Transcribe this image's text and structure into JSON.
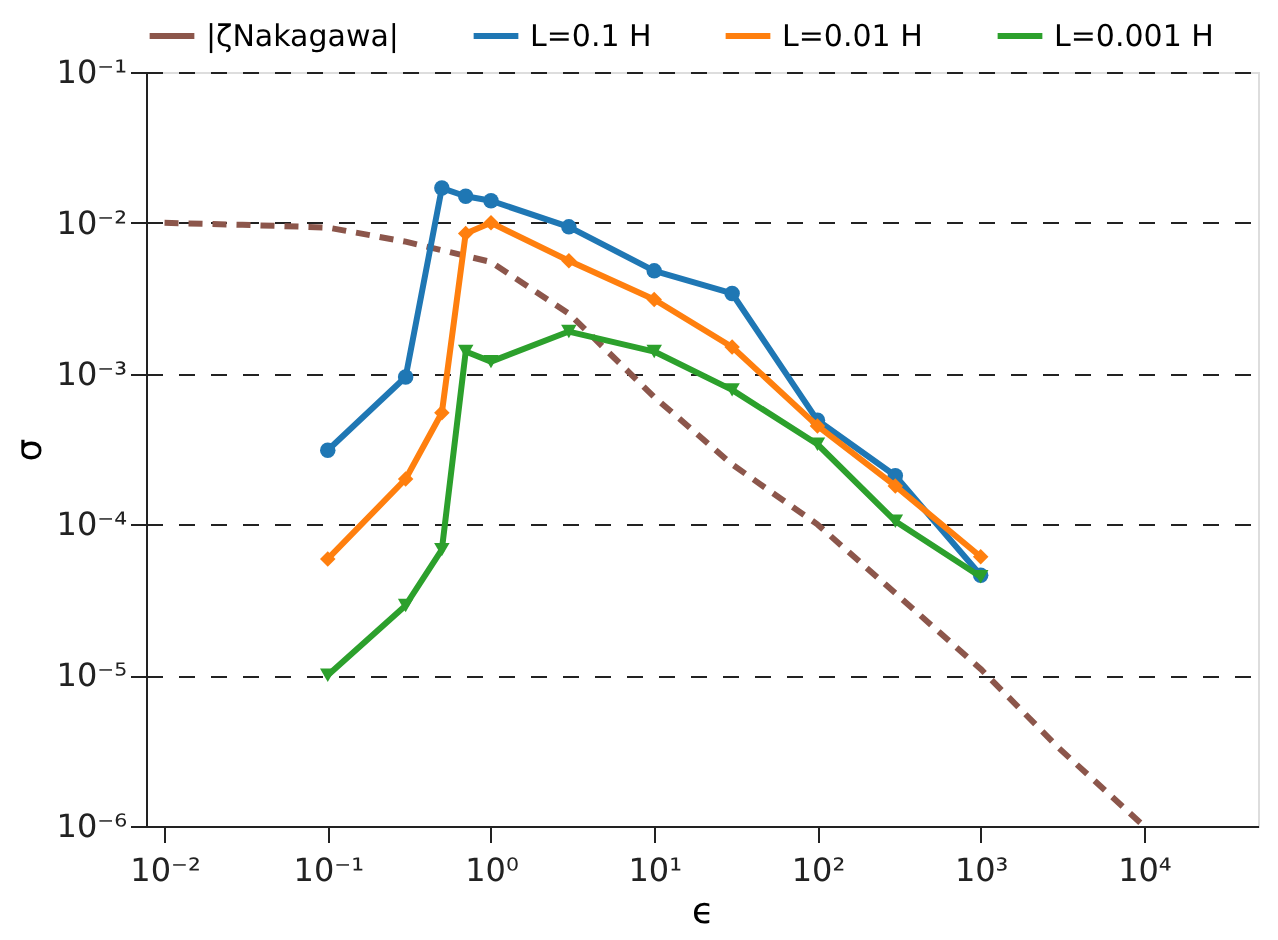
{
  "chart_data": {
    "type": "line",
    "xlabel": "ϵ",
    "ylabel": "σ",
    "log": "xy",
    "grid": "y",
    "legend": "top",
    "xlim": [
      0.0077,
      50000
    ],
    "ylim": [
      1e-06,
      0.1
    ],
    "xticks": [
      {
        "value": 0.01,
        "label": "10⁻²"
      },
      {
        "value": 0.1,
        "label": "10⁻¹"
      },
      {
        "value": 1,
        "label": "10⁰"
      },
      {
        "value": 10,
        "label": "10¹"
      },
      {
        "value": 100,
        "label": "10²"
      },
      {
        "value": 1000,
        "label": "10³"
      },
      {
        "value": 10000,
        "label": "10⁴"
      }
    ],
    "yticks": [
      {
        "value": 1e-06,
        "label": "10⁻⁶"
      },
      {
        "value": 1e-05,
        "label": "10⁻⁵"
      },
      {
        "value": 0.0001,
        "label": "10⁻⁴"
      },
      {
        "value": 0.001,
        "label": "10⁻³"
      },
      {
        "value": 0.01,
        "label": "10⁻²"
      },
      {
        "value": 0.1,
        "label": "10⁻¹"
      }
    ],
    "series": [
      {
        "name": "|ζNakagawa|",
        "color": "#8c564b",
        "marker": "none",
        "line_style": "dashed",
        "x": [
          0.01,
          0.03,
          0.1,
          0.3,
          1,
          3,
          10,
          30,
          100,
          300,
          1000,
          3000,
          10000
        ],
        "values": [
          0.01,
          0.0097,
          0.0093,
          0.0075,
          0.0055,
          0.0025,
          0.0007,
          0.00025,
          0.0001,
          3.5e-05,
          1.1e-05,
          3.3e-06,
          1e-06
        ]
      },
      {
        "name": "L=0.1 H",
        "color": "#1f77b4",
        "marker": "circle",
        "line_style": "solid",
        "x": [
          0.1,
          0.3,
          0.5,
          0.7,
          1,
          3,
          10,
          30,
          100,
          300,
          1000
        ],
        "values": [
          0.00031,
          0.00095,
          0.017,
          0.015,
          0.014,
          0.0094,
          0.0048,
          0.0034,
          0.00049,
          0.00021,
          4.6e-05
        ]
      },
      {
        "name": "L=0.01 H",
        "color": "#ff7f0e",
        "marker": "diamond",
        "line_style": "solid",
        "x": [
          0.1,
          0.3,
          0.5,
          0.7,
          1,
          3,
          10,
          30,
          100,
          300,
          1000
        ],
        "values": [
          5.9e-05,
          0.0002,
          0.00055,
          0.0085,
          0.01,
          0.0056,
          0.0031,
          0.0015,
          0.00045,
          0.00018,
          6.1e-05
        ]
      },
      {
        "name": "L=0.001 H",
        "color": "#2ca02c",
        "marker": "triangle",
        "line_style": "solid",
        "x": [
          0.1,
          0.3,
          0.5,
          0.7,
          1,
          3,
          10,
          30,
          100,
          300,
          1000
        ],
        "values": [
          1e-05,
          2.9e-05,
          6.8e-05,
          0.0014,
          0.0012,
          0.0019,
          0.0014,
          0.00078,
          0.00034,
          0.000105,
          4.5e-05
        ]
      }
    ]
  }
}
